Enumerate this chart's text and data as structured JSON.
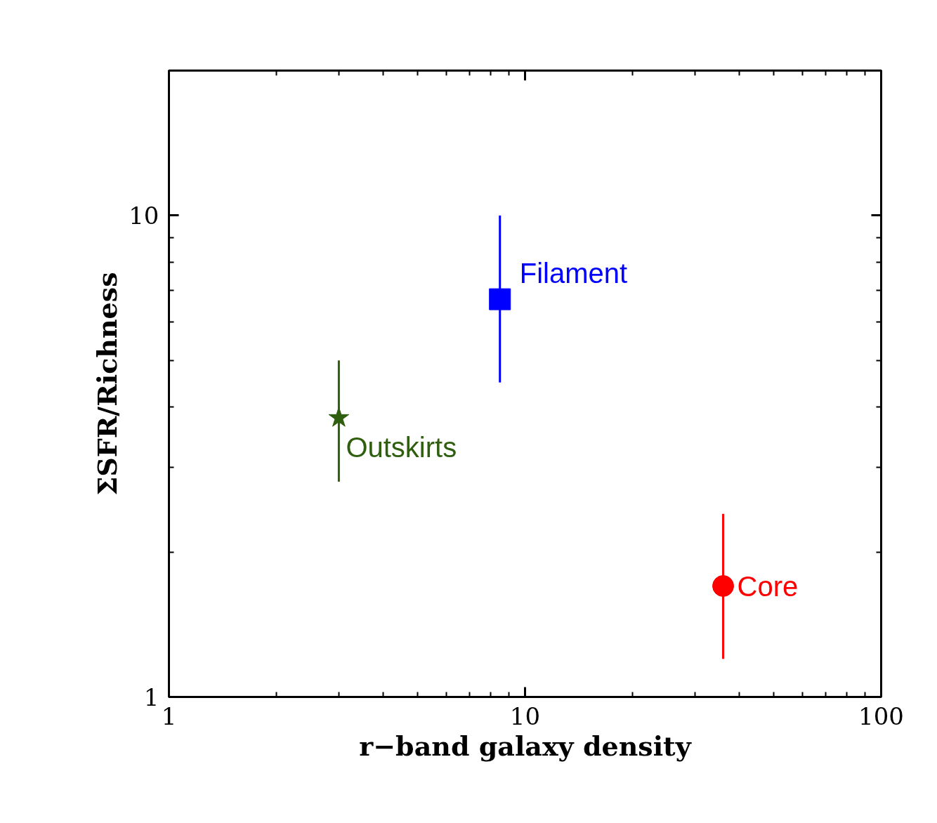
{
  "chart_data": {
    "type": "scatter",
    "xlabel": "r−band galaxy density",
    "ylabel": "ΣSFR/Richness",
    "log": "xy",
    "grid": false,
    "xlim": [
      1,
      100
    ],
    "xticks": [
      1,
      10,
      100
    ],
    "ylim": [
      1,
      20
    ],
    "yticks": [
      1,
      10
    ],
    "series": [
      {
        "name": "Outskirts",
        "color": "#2e5e0e",
        "marker": "star",
        "x": [
          3.0
        ],
        "values": [
          3.8
        ],
        "errors": [
          [
            2.8,
            5.0
          ]
        ]
      },
      {
        "name": "Filament",
        "color": "#0000ff",
        "marker": "square",
        "x": [
          8.5
        ],
        "values": [
          6.7
        ],
        "errors": [
          [
            4.5,
            10.0
          ]
        ]
      },
      {
        "name": "Core",
        "color": "#ff0000",
        "marker": "circle",
        "x": [
          36.0
        ],
        "values": [
          1.7
        ],
        "errors": [
          [
            1.2,
            2.4
          ]
        ]
      }
    ]
  }
}
